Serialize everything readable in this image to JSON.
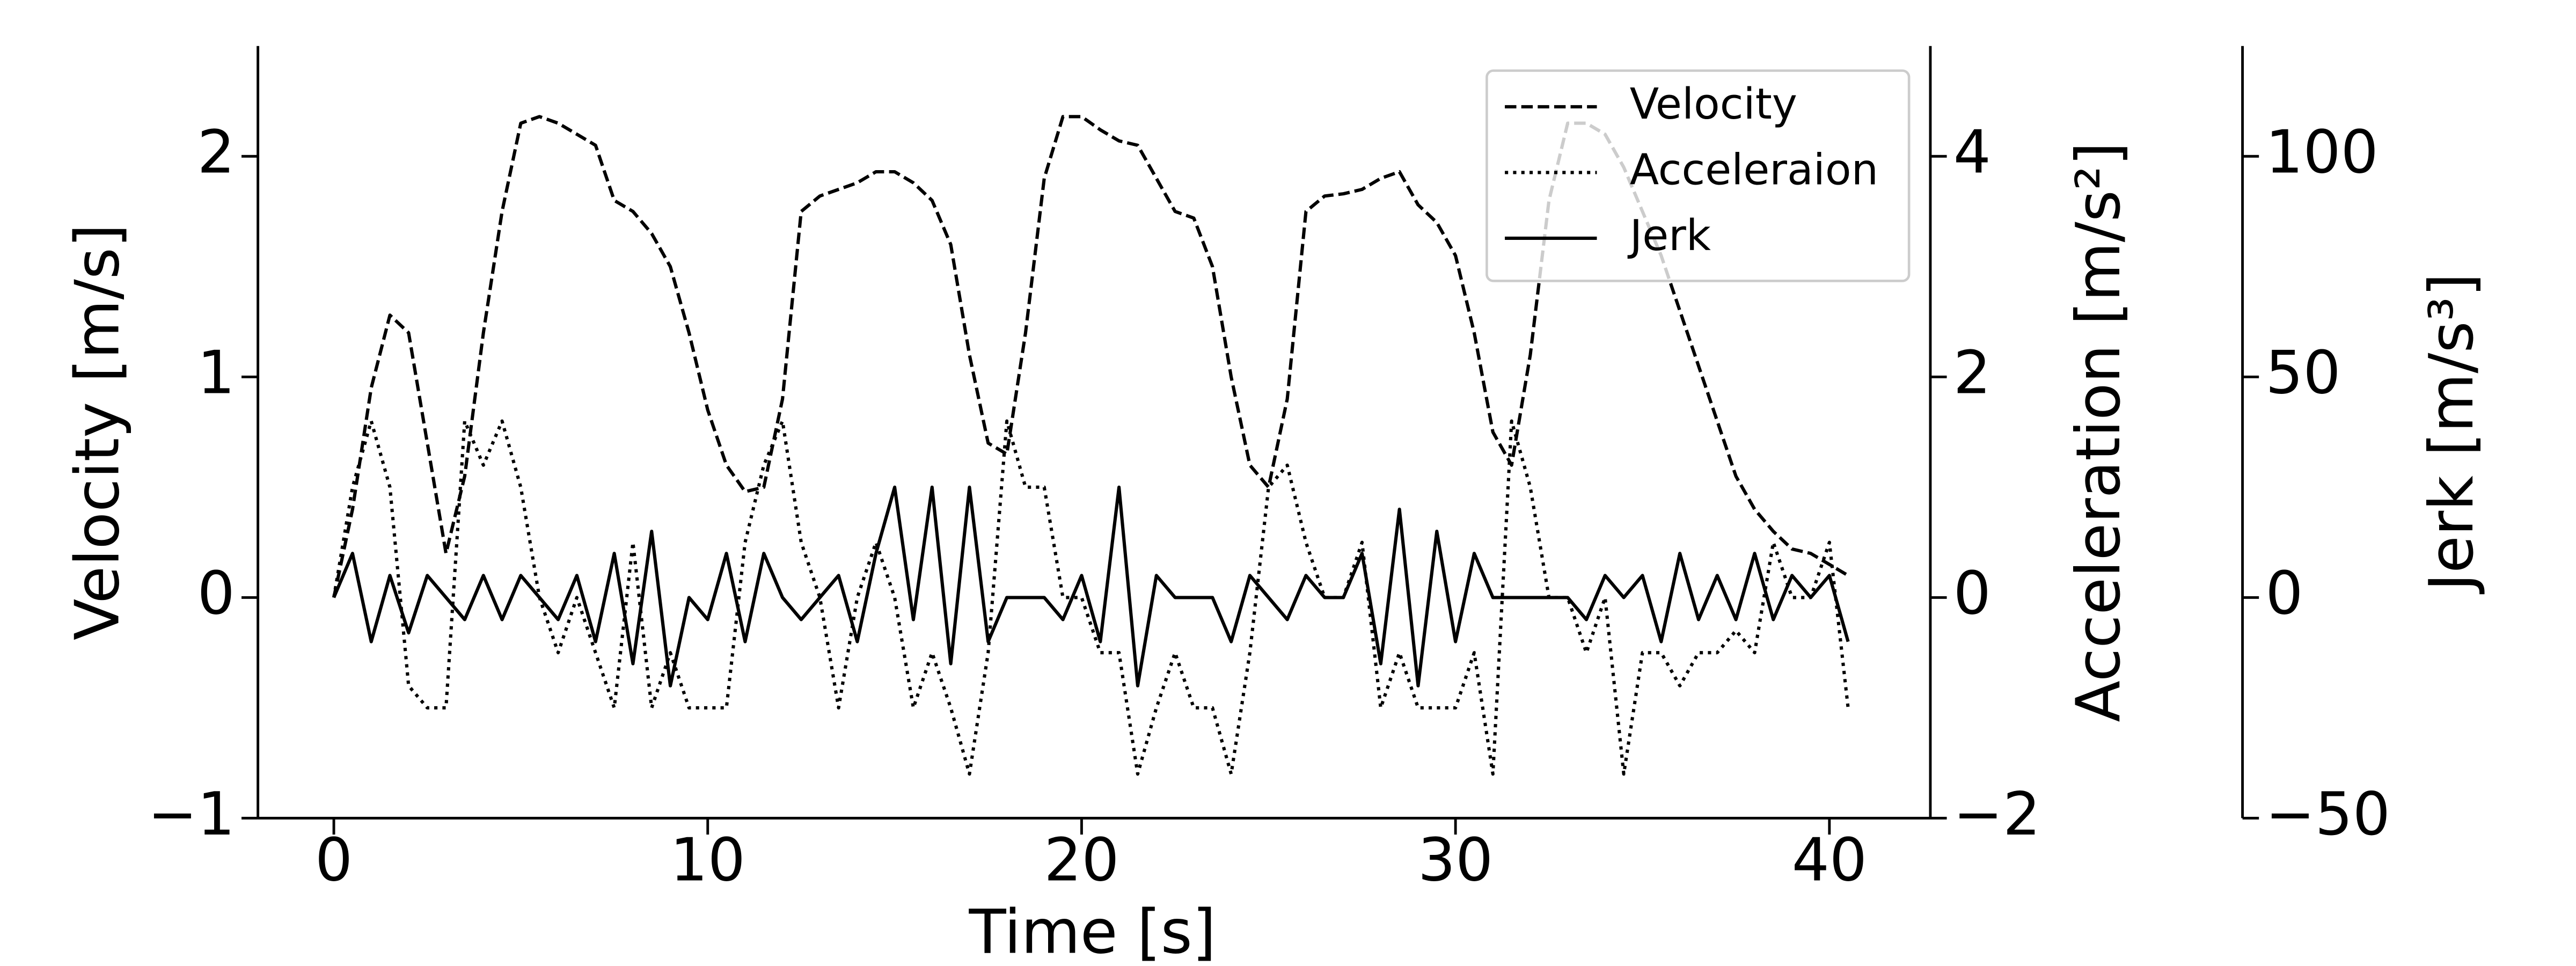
{
  "chart_data": {
    "type": "line",
    "xlabel": "Time [s]",
    "ylabel": "Velocity [m/s]",
    "y2label": "Acceleration [m/s²]",
    "y3label": "Jerk [m/s³]",
    "xlim": [
      -2.03,
      42.7
    ],
    "ylim": [
      -1,
      2.5
    ],
    "y2lim": [
      -2,
      5
    ],
    "y3lim": [
      -50,
      125
    ],
    "xticks": [
      0,
      10,
      20,
      30,
      40
    ],
    "yticks": [
      {
        "value": -1,
        "label": "−1"
      },
      0,
      1,
      2
    ],
    "y2ticks": [
      {
        "value": -2,
        "label": "−2"
      },
      0,
      2,
      4
    ],
    "y3ticks": [
      {
        "value": -50,
        "label": "−50"
      },
      0,
      50,
      100
    ],
    "legend": "upper right",
    "x": [
      0,
      0.5,
      1,
      1.5,
      2,
      2.5,
      3,
      3.5,
      4,
      4.5,
      5,
      5.5,
      6,
      6.5,
      7,
      7.5,
      8,
      8.5,
      9,
      9.5,
      10,
      10.5,
      11,
      11.5,
      12,
      12.5,
      13,
      13.5,
      14,
      14.5,
      15,
      15.5,
      16,
      16.5,
      17,
      17.5,
      18,
      18.5,
      19,
      19.5,
      20,
      20.5,
      21,
      21.5,
      22,
      22.5,
      23,
      23.5,
      24,
      24.5,
      25,
      25.5,
      26,
      26.5,
      27,
      27.5,
      28,
      28.5,
      29,
      29.5,
      30,
      30.5,
      31,
      31.5,
      32,
      32.5,
      33,
      33.5,
      34,
      34.5,
      35,
      35.5,
      36,
      36.5,
      37,
      37.5,
      38,
      38.5,
      39,
      39.5,
      40,
      40.5
    ],
    "series": [
      {
        "name": "Velocity",
        "color": "#000000",
        "linestyle": "dashed",
        "axis": "y",
        "values": [
          0,
          0.4,
          0.95,
          1.28,
          1.2,
          0.7,
          0.2,
          0.55,
          1.2,
          1.75,
          2.15,
          2.18,
          2.15,
          2.1,
          2.05,
          1.8,
          1.75,
          1.65,
          1.5,
          1.2,
          0.85,
          0.6,
          0.48,
          0.5,
          0.9,
          1.75,
          1.82,
          1.85,
          1.88,
          1.93,
          1.93,
          1.88,
          1.8,
          1.6,
          1.1,
          0.7,
          0.65,
          1.2,
          1.9,
          2.18,
          2.18,
          2.12,
          2.07,
          2.05,
          1.9,
          1.75,
          1.72,
          1.5,
          1.0,
          0.6,
          0.5,
          0.9,
          1.75,
          1.82,
          1.83,
          1.85,
          1.9,
          1.93,
          1.78,
          1.7,
          1.55,
          1.2,
          0.75,
          0.6,
          1.1,
          1.8,
          2.15,
          2.15,
          2.1,
          1.95,
          1.75,
          1.55,
          1.3,
          1.05,
          0.8,
          0.55,
          0.4,
          0.3,
          0.22,
          0.2,
          0.15,
          0.1
        ]
      },
      {
        "name": "Acceleraion",
        "color": "#000000",
        "linestyle": "dotted",
        "axis": "y2",
        "values": [
          0,
          1.0,
          1.6,
          1.0,
          -0.8,
          -1.0,
          -1.0,
          1.6,
          1.2,
          1.6,
          1.0,
          0,
          -0.5,
          0,
          -0.5,
          -1.0,
          0.5,
          -1.0,
          -0.5,
          -1.0,
          -1.0,
          -1.0,
          0.5,
          1.2,
          1.6,
          0.5,
          0,
          -1.0,
          0,
          0.5,
          0,
          -1.0,
          -0.5,
          -1.0,
          -1.6,
          -0.5,
          1.6,
          1.0,
          1.0,
          0,
          0,
          -0.5,
          -0.5,
          -1.6,
          -1.0,
          -0.5,
          -1.0,
          -1.0,
          -1.6,
          -0.5,
          1.0,
          1.2,
          0.5,
          0,
          0,
          0.5,
          -1.0,
          -0.5,
          -1.0,
          -1.0,
          -1.0,
          -0.5,
          -1.6,
          1.6,
          1.0,
          0,
          0,
          -0.5,
          0,
          -1.6,
          -0.5,
          -0.5,
          -0.8,
          -0.5,
          -0.5,
          -0.3,
          -0.5,
          0.5,
          0,
          0,
          0.5,
          -1.0
        ]
      },
      {
        "name": "Jerk",
        "color": "#000000",
        "linestyle": "solid",
        "axis": "y3",
        "values": [
          0,
          10,
          -10,
          5,
          -8,
          5,
          0,
          -5,
          5,
          -5,
          5,
          0,
          -5,
          5,
          -10,
          10,
          -15,
          15,
          -20,
          0,
          -5,
          10,
          -10,
          10,
          0,
          -5,
          0,
          5,
          -10,
          10,
          25,
          -5,
          25,
          -15,
          25,
          -10,
          0,
          0,
          0,
          -5,
          5,
          -10,
          25,
          -20,
          5,
          0,
          0,
          0,
          -10,
          5,
          0,
          -5,
          5,
          0,
          0,
          10,
          -15,
          20,
          -20,
          15,
          -10,
          10,
          0,
          0,
          0,
          0,
          0,
          -5,
          5,
          0,
          5,
          -10,
          10,
          -5,
          5,
          -5,
          10,
          -5,
          5,
          0,
          5,
          -10
        ]
      }
    ]
  }
}
